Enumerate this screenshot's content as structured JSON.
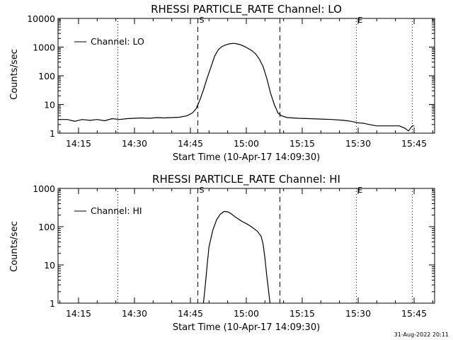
{
  "footer": {
    "timestamp": "31-Aug-2022 20:11"
  },
  "chart_data": [
    {
      "type": "line",
      "title": "RHESSI PARTICLE_RATE Channel: LO",
      "xlabel": "Start Time (10-Apr-17 14:09:30)",
      "ylabel": "Counts/sec",
      "yscale": "log",
      "ylim": [
        1,
        10000
      ],
      "xlim": [
        "14:09:30",
        "15:50:30"
      ],
      "x_ticks": [
        "14:15",
        "14:30",
        "14:45",
        "15:00",
        "15:15",
        "15:30",
        "15:45"
      ],
      "y_ticks": [
        "1",
        "10",
        "100",
        "1000",
        "10000"
      ],
      "legend": {
        "position": "top-left",
        "entries": [
          "Channel: LO"
        ]
      },
      "vlines": [
        {
          "time": "14:25:30",
          "style": "dotted"
        },
        {
          "time": "14:47:00",
          "style": "dashed",
          "label": "S"
        },
        {
          "time": "15:09:00",
          "style": "dashed"
        },
        {
          "time": "15:29:30",
          "style": "dotted",
          "label": "E"
        },
        {
          "time": "15:44:30",
          "style": "dotted"
        }
      ],
      "series": [
        {
          "name": "Channel: LO",
          "x": [
            "14:09:30",
            "14:12:00",
            "14:14:00",
            "14:16:00",
            "14:18:00",
            "14:20:00",
            "14:22:00",
            "14:24:00",
            "14:26:00",
            "14:28:00",
            "14:30:00",
            "14:32:00",
            "14:34:00",
            "14:36:00",
            "14:38:00",
            "14:40:00",
            "14:42:00",
            "14:44:00",
            "14:45:30",
            "14:46:30",
            "14:47:30",
            "14:48:30",
            "14:49:30",
            "14:50:30",
            "14:51:30",
            "14:52:30",
            "14:53:30",
            "14:54:30",
            "14:55:30",
            "14:56:30",
            "14:57:30",
            "14:58:30",
            "14:59:30",
            "15:00:30",
            "15:01:30",
            "15:02:30",
            "15:03:30",
            "15:04:30",
            "15:05:30",
            "15:06:30",
            "15:07:30",
            "15:08:30",
            "15:09:30",
            "15:11:00",
            "15:14:00",
            "15:17:00",
            "15:20:00",
            "15:23:00",
            "15:26:00",
            "15:28:00",
            "15:30:00",
            "15:31:30",
            "15:33:00",
            "15:35:00",
            "15:37:00",
            "15:39:00",
            "15:41:00",
            "15:42:30",
            "15:43:30",
            "15:44:30",
            "15:45:00"
          ],
          "y": [
            3,
            3,
            2.6,
            3,
            2.8,
            3,
            2.7,
            3.2,
            3,
            3.2,
            3.3,
            3.4,
            3.3,
            3.5,
            3.4,
            3.5,
            3.6,
            4,
            5,
            7,
            14,
            32,
            85,
            200,
            480,
            820,
            1050,
            1200,
            1300,
            1350,
            1300,
            1200,
            1050,
            900,
            750,
            580,
            380,
            210,
            80,
            25,
            10,
            5,
            4,
            3.5,
            3.3,
            3.2,
            3.1,
            3,
            2.8,
            2.6,
            2.3,
            2.2,
            2,
            1.8,
            1.8,
            1.8,
            1.8,
            1.5,
            1.2,
            1.8,
            1.8
          ]
        }
      ]
    },
    {
      "type": "line",
      "title": "RHESSI PARTICLE_RATE Channel: HI",
      "xlabel": "Start Time (10-Apr-17 14:09:30)",
      "ylabel": "Counts/sec",
      "yscale": "log",
      "ylim": [
        1,
        1000
      ],
      "xlim": [
        "14:09:30",
        "15:50:30"
      ],
      "x_ticks": [
        "14:15",
        "14:30",
        "14:45",
        "15:00",
        "15:15",
        "15:30",
        "15:45"
      ],
      "y_ticks": [
        "1",
        "10",
        "100",
        "1000"
      ],
      "legend": {
        "position": "top-left",
        "entries": [
          "Channel: HI"
        ]
      },
      "vlines": [
        {
          "time": "14:25:30",
          "style": "dotted"
        },
        {
          "time": "14:47:00",
          "style": "dashed",
          "label": "S"
        },
        {
          "time": "15:09:00",
          "style": "dashed"
        },
        {
          "time": "15:29:30",
          "style": "dotted",
          "label": "E"
        },
        {
          "time": "15:44:30",
          "style": "dotted"
        }
      ],
      "series": [
        {
          "name": "Channel: HI",
          "x": [
            "14:48:30",
            "14:49:00",
            "14:49:30",
            "14:50:00",
            "14:51:00",
            "14:52:00",
            "14:53:00",
            "14:54:00",
            "14:55:00",
            "14:56:00",
            "14:57:00",
            "14:58:00",
            "14:59:00",
            "15:00:00",
            "15:01:00",
            "15:02:00",
            "15:03:00",
            "15:04:00",
            "15:04:30",
            "15:05:00",
            "15:05:30",
            "15:06:00",
            "15:06:20"
          ],
          "y": [
            1,
            3,
            10,
            30,
            80,
            150,
            210,
            250,
            245,
            215,
            180,
            155,
            135,
            120,
            105,
            90,
            75,
            55,
            35,
            15,
            5,
            2,
            1
          ]
        }
      ]
    }
  ]
}
